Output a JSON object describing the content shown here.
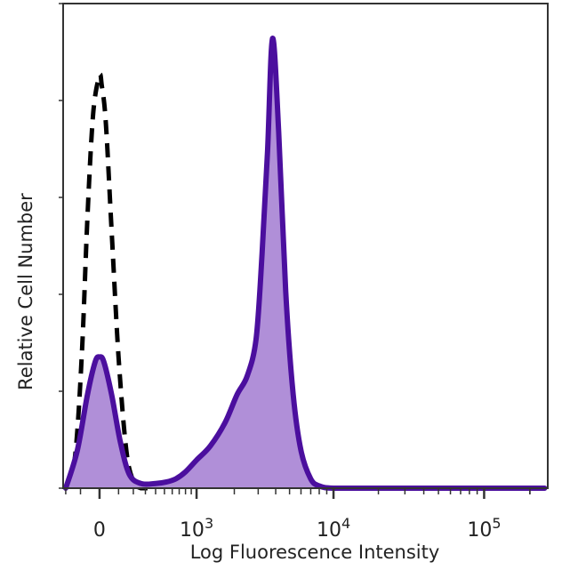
{
  "chart_data": {
    "type": "area",
    "xlabel": "Log Fluorescence Intensity",
    "ylabel": "Relative Cell Number",
    "x_scale": "biexponential",
    "x_ticks": [
      {
        "value": 0,
        "label": "0"
      },
      {
        "value": 1000,
        "base": "10",
        "exp": "3"
      },
      {
        "value": 10000,
        "base": "10",
        "exp": "4"
      },
      {
        "value": 100000,
        "base": "10",
        "exp": "5"
      }
    ],
    "ylim": [
      0,
      100
    ],
    "legend": "none",
    "grid": false,
    "series": [
      {
        "style": "dashed-outline",
        "color": "#000000",
        "x": [
          -180,
          -130,
          -90,
          -60,
          -30,
          0,
          10,
          30,
          60,
          100,
          150,
          200,
          260,
          320
        ],
        "y": [
          0,
          8,
          30,
          58,
          80,
          88,
          86,
          78,
          55,
          28,
          8,
          1.5,
          0,
          0
        ]
      },
      {
        "style": "filled",
        "color": "#4b0f9e",
        "fill": "#b08fd8",
        "x": [
          -200,
          -120,
          -60,
          -20,
          0,
          20,
          60,
          110,
          170,
          260,
          400,
          520,
          650,
          800,
          1000,
          1300,
          1700,
          2100,
          2500,
          2900,
          3200,
          3500,
          3800,
          4200,
          4700,
          5300,
          6000,
          7000,
          8000,
          10000,
          20000,
          50000,
          250000
        ],
        "y": [
          0,
          8,
          20,
          27,
          28,
          27,
          20,
          10,
          3,
          1,
          1,
          1.3,
          2,
          3.5,
          6,
          9,
          14,
          20,
          24,
          32,
          50,
          72,
          96,
          76,
          42,
          20,
          8,
          2,
          0.5,
          0,
          0,
          0,
          0
        ]
      }
    ]
  }
}
